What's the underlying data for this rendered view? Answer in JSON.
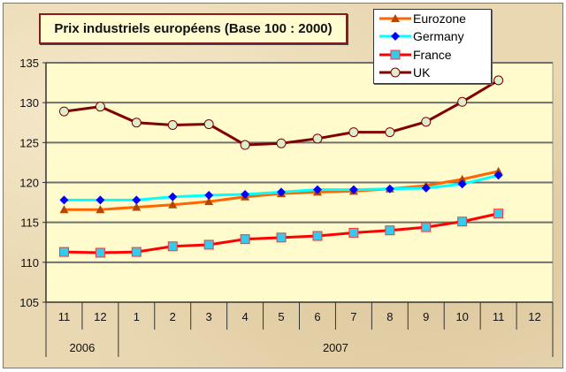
{
  "chart_data": {
    "type": "line",
    "title": "Prix industriels européens (Base 100 : 2000)",
    "xlabel": "",
    "ylabel": "",
    "categories": [
      "11",
      "12",
      "1",
      "2",
      "3",
      "4",
      "5",
      "6",
      "7",
      "8",
      "9",
      "10",
      "11",
      "12"
    ],
    "category_groups": [
      {
        "label": "2006",
        "span": 2
      },
      {
        "label": "2007",
        "span": 12
      }
    ],
    "ylim": [
      105,
      135
    ],
    "yticks": [
      "105",
      "110",
      "115",
      "120",
      "125",
      "130",
      "135"
    ],
    "grid": true,
    "legend_position": "top-right",
    "series": [
      {
        "name": "Eurozone",
        "color": "#ff6600",
        "marker": "triangle",
        "marker_color": "#b34700",
        "values": [
          116.6,
          116.6,
          116.9,
          117.2,
          117.6,
          118.2,
          118.6,
          118.8,
          118.9,
          119.2,
          119.6,
          120.4,
          121.4,
          null
        ]
      },
      {
        "name": "Germany",
        "color": "#00ffff",
        "marker": "diamond",
        "marker_color": "#0000ff",
        "values": [
          117.8,
          117.8,
          117.8,
          118.2,
          118.4,
          118.5,
          118.8,
          119.1,
          119.1,
          119.2,
          119.3,
          119.8,
          120.9,
          null
        ]
      },
      {
        "name": "France",
        "color": "#ff0000",
        "marker": "square",
        "marker_color": "#33ccee",
        "values": [
          111.3,
          111.2,
          111.3,
          112.0,
          112.2,
          112.9,
          113.1,
          113.3,
          113.7,
          114.0,
          114.4,
          115.1,
          116.1,
          null
        ]
      },
      {
        "name": "UK",
        "color": "#800000",
        "marker": "circle",
        "marker_color": "#ddeecc",
        "values": [
          128.9,
          129.5,
          127.5,
          127.2,
          127.3,
          124.7,
          124.9,
          125.5,
          126.3,
          126.3,
          127.6,
          130.1,
          132.8,
          null
        ]
      }
    ]
  }
}
